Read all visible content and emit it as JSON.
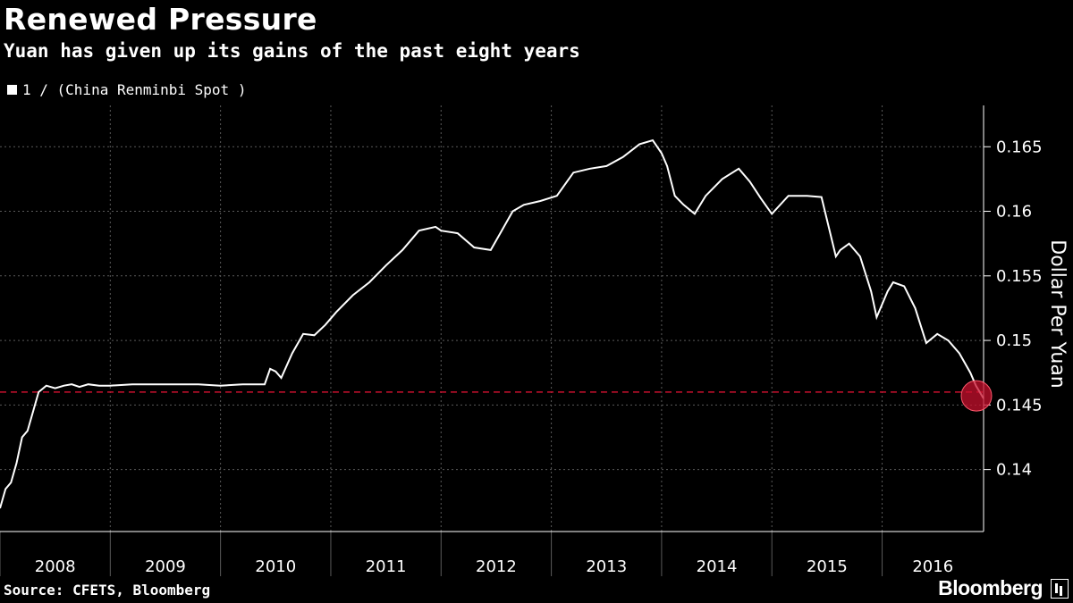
{
  "header": {
    "title": "Renewed Pressure",
    "subtitle": "Yuan has given up its gains of the past eight years"
  },
  "footer": {
    "source": "Source: CFETS, Bloomberg",
    "brand": "Bloomberg"
  },
  "colors": {
    "background": "#000000",
    "line": "#ffffff",
    "reference_line": "#c8102e",
    "highlight": "#c8102e",
    "grid": "#5a5a5a"
  },
  "chart_data": {
    "type": "line",
    "series": [
      {
        "name": "1 / (China Renminbi Spot )",
        "x": [
          2008.0,
          2008.05,
          2008.1,
          2008.15,
          2008.2,
          2008.25,
          2008.3,
          2008.35,
          2008.42,
          2008.5,
          2008.58,
          2008.65,
          2008.72,
          2008.8,
          2008.9,
          2009.0,
          2009.2,
          2009.4,
          2009.6,
          2009.8,
          2010.0,
          2010.2,
          2010.4,
          2010.45,
          2010.5,
          2010.55,
          2010.65,
          2010.75,
          2010.85,
          2010.95,
          2011.05,
          2011.2,
          2011.35,
          2011.5,
          2011.65,
          2011.8,
          2011.95,
          2012.0,
          2012.15,
          2012.3,
          2012.45,
          2012.55,
          2012.65,
          2012.75,
          2012.9,
          2013.05,
          2013.2,
          2013.35,
          2013.5,
          2013.65,
          2013.8,
          2013.92,
          2014.0,
          2014.05,
          2014.12,
          2014.2,
          2014.3,
          2014.4,
          2014.55,
          2014.7,
          2014.8,
          2014.9,
          2015.0,
          2015.15,
          2015.32,
          2015.45,
          2015.58,
          2015.62,
          2015.7,
          2015.8,
          2015.9,
          2015.95,
          2016.05,
          2016.1,
          2016.2,
          2016.3,
          2016.4,
          2016.5,
          2016.6,
          2016.7,
          2016.8,
          2016.85,
          2016.92
        ],
        "values": [
          0.137,
          0.1385,
          0.139,
          0.1405,
          0.1425,
          0.143,
          0.1445,
          0.146,
          0.1465,
          0.1463,
          0.1465,
          0.1466,
          0.1464,
          0.1466,
          0.1465,
          0.1465,
          0.1466,
          0.1466,
          0.1466,
          0.1466,
          0.1465,
          0.1466,
          0.1466,
          0.1478,
          0.1476,
          0.1471,
          0.149,
          0.1505,
          0.1504,
          0.1512,
          0.1522,
          0.1535,
          0.1545,
          0.1558,
          0.157,
          0.1585,
          0.1588,
          0.1585,
          0.1583,
          0.1572,
          0.157,
          0.1585,
          0.16,
          0.1605,
          0.1608,
          0.1612,
          0.163,
          0.1633,
          0.1635,
          0.1642,
          0.1652,
          0.1655,
          0.1645,
          0.1635,
          0.1612,
          0.1605,
          0.1598,
          0.1612,
          0.1625,
          0.1633,
          0.1623,
          0.161,
          0.1598,
          0.1612,
          0.1612,
          0.1611,
          0.1565,
          0.157,
          0.1575,
          0.1565,
          0.1538,
          0.1518,
          0.1538,
          0.1545,
          0.1542,
          0.1525,
          0.1498,
          0.1505,
          0.15,
          0.149,
          0.1475,
          0.1465,
          0.1455
        ]
      }
    ],
    "xlim": [
      2008.0,
      2016.92
    ],
    "ylim": [
      0.1352,
      0.1682
    ],
    "x_ticks": [
      "2008",
      "2009",
      "2010",
      "2011",
      "2012",
      "2013",
      "2014",
      "2015",
      "2016"
    ],
    "y_ticks": [
      0.14,
      0.145,
      0.15,
      0.155,
      0.16,
      0.165
    ],
    "y_tick_labels": [
      "0.14",
      "0.145",
      "0.15",
      "0.155",
      "0.16",
      "0.165"
    ],
    "ylabel": "Dollar Per Yuan",
    "reference_line": 0.146,
    "highlight_point": {
      "x": 2016.92,
      "y": 0.1455
    },
    "grid": true,
    "legend_position": "top-left"
  }
}
